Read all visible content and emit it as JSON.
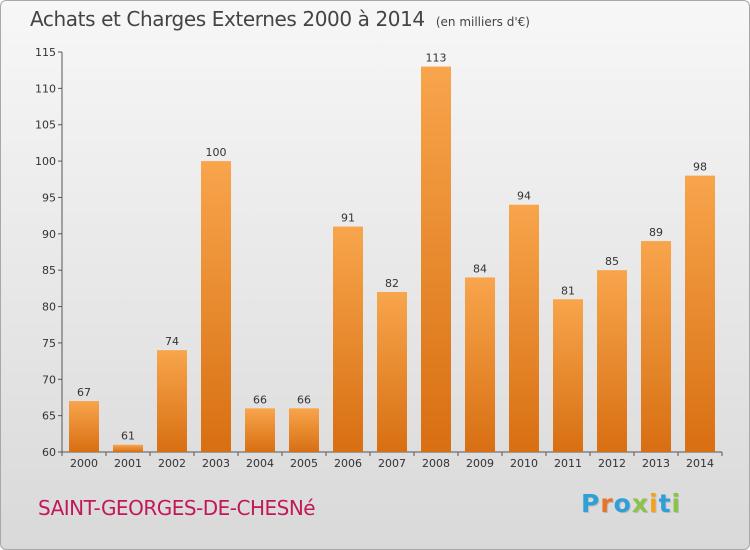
{
  "chart_data": {
    "type": "bar",
    "title": "Achats et Charges Externes 2000 à 2014",
    "subtitle": "(en milliers d'€)",
    "categories": [
      "2000",
      "2001",
      "2002",
      "2003",
      "2004",
      "2005",
      "2006",
      "2007",
      "2008",
      "2009",
      "2010",
      "2011",
      "2012",
      "2013",
      "2014"
    ],
    "values": [
      67,
      61,
      74,
      100,
      66,
      66,
      91,
      82,
      113,
      84,
      94,
      81,
      85,
      89,
      98
    ],
    "ylim": [
      60,
      115
    ],
    "yticks": [
      60,
      65,
      70,
      75,
      80,
      85,
      90,
      95,
      100,
      105,
      110,
      115
    ],
    "grid": false,
    "xlabel": "",
    "ylabel": "",
    "colors": {
      "bar_light": "#f8a54c",
      "bar_dark": "#d86f12",
      "axis": "#555555"
    }
  },
  "footer": {
    "commune": "SAINT-GEORGES-DE-CHESNé",
    "logo_letters": [
      "P",
      "r",
      "o",
      "x",
      "i",
      "t",
      "i"
    ],
    "logo_colors": [
      "#2f9fd8",
      "#e8732a",
      "#2f9fd8",
      "#8bc34a",
      "#f3a31b",
      "#2f9fd8",
      "#8bc34a"
    ]
  }
}
